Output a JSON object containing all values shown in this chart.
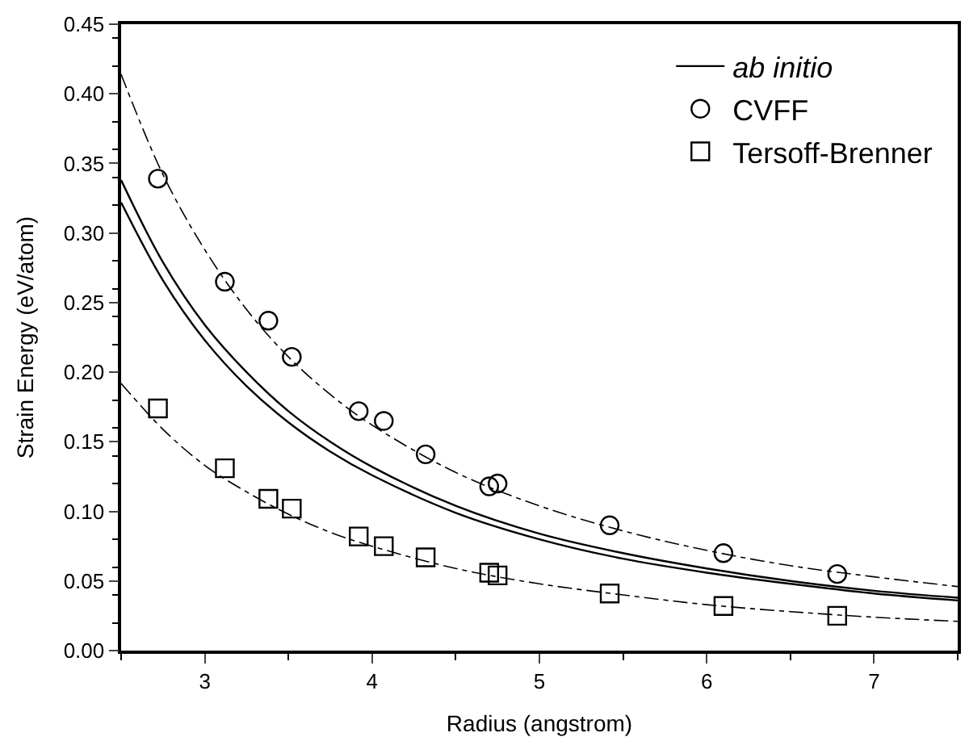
{
  "chart_data": {
    "type": "scatter",
    "xlabel": "Radius (angstrom)",
    "ylabel": "Strain Energy (eV/atom)",
    "xlim": [
      2.5,
      7.5
    ],
    "xticks": [
      3,
      4,
      5,
      6,
      7
    ],
    "ylim": [
      0,
      0.45
    ],
    "yticks": [
      {
        "value": 0,
        "label": "0.00"
      },
      0.05,
      {
        "value": 0.1,
        "label": "0.10"
      },
      0.15,
      {
        "value": 0.2,
        "label": "0.20"
      },
      0.25,
      {
        "value": 0.3,
        "label": "0.30"
      },
      0.35,
      {
        "value": 0.4,
        "label": "0.40"
      },
      0.45
    ],
    "legend": "top right",
    "series": [
      {
        "name": "CVFF",
        "marker": "circle",
        "color": "#000000",
        "x": [
          2.72,
          3.12,
          3.38,
          3.52,
          3.92,
          4.07,
          4.32,
          4.7,
          4.75,
          5.42,
          6.1,
          6.78
        ],
        "values": [
          0.339,
          0.265,
          0.237,
          0.211,
          0.172,
          0.165,
          0.141,
          0.118,
          0.12,
          0.09,
          0.07,
          0.055
        ]
      },
      {
        "name": "Tersoff-Brenner",
        "marker": "square",
        "color": "#000000",
        "x": [
          2.72,
          3.12,
          3.38,
          3.52,
          3.92,
          4.07,
          4.32,
          4.7,
          4.75,
          5.42,
          6.1,
          6.78
        ],
        "values": [
          0.174,
          0.131,
          0.109,
          0.102,
          0.082,
          0.075,
          0.067,
          0.056,
          0.054,
          0.041,
          0.032,
          0.025
        ]
      },
      {
        "name": "ab initio",
        "type": "line",
        "line_style": "solid",
        "color": "#000000",
        "x": [
          2.5,
          2.75,
          3,
          3.25,
          3.5,
          3.75,
          4,
          4.5,
          5,
          5.5,
          6,
          6.5,
          7,
          7.5
        ],
        "values": [
          0.338,
          0.279,
          0.234,
          0.2,
          0.172,
          0.15,
          0.132,
          0.104,
          0.084,
          0.07,
          0.059,
          0.05,
          0.043,
          0.038
        ]
      },
      {
        "type": "line",
        "line_style": "solid",
        "color": "#000000",
        "x": [
          2.5,
          2.75,
          3,
          3.25,
          3.5,
          3.75,
          4,
          4.5,
          5,
          5.5,
          6,
          6.5,
          7,
          7.5
        ],
        "values": [
          0.322,
          0.266,
          0.223,
          0.19,
          0.164,
          0.143,
          0.126,
          0.099,
          0.08,
          0.066,
          0.056,
          0.048,
          0.041,
          0.036
        ]
      },
      {
        "type": "line",
        "line_style": "dashdot",
        "color": "#000000",
        "x": [
          2.5,
          2.75,
          3,
          3.25,
          3.5,
          3.75,
          4,
          4.5,
          5,
          5.5,
          6,
          6.5,
          7,
          7.5
        ],
        "values": [
          0.414,
          0.342,
          0.288,
          0.245,
          0.211,
          0.184,
          0.162,
          0.128,
          0.104,
          0.086,
          0.072,
          0.061,
          0.053,
          0.046
        ]
      },
      {
        "type": "line",
        "line_style": "dashdot",
        "color": "#000000",
        "x": [
          2.5,
          2.75,
          3,
          3.25,
          3.5,
          3.75,
          4,
          4.5,
          5,
          5.5,
          6,
          6.5,
          7,
          7.5
        ],
        "values": [
          0.192,
          0.159,
          0.133,
          0.114,
          0.098,
          0.085,
          0.075,
          0.059,
          0.048,
          0.04,
          0.033,
          0.028,
          0.024,
          0.021
        ]
      }
    ]
  }
}
